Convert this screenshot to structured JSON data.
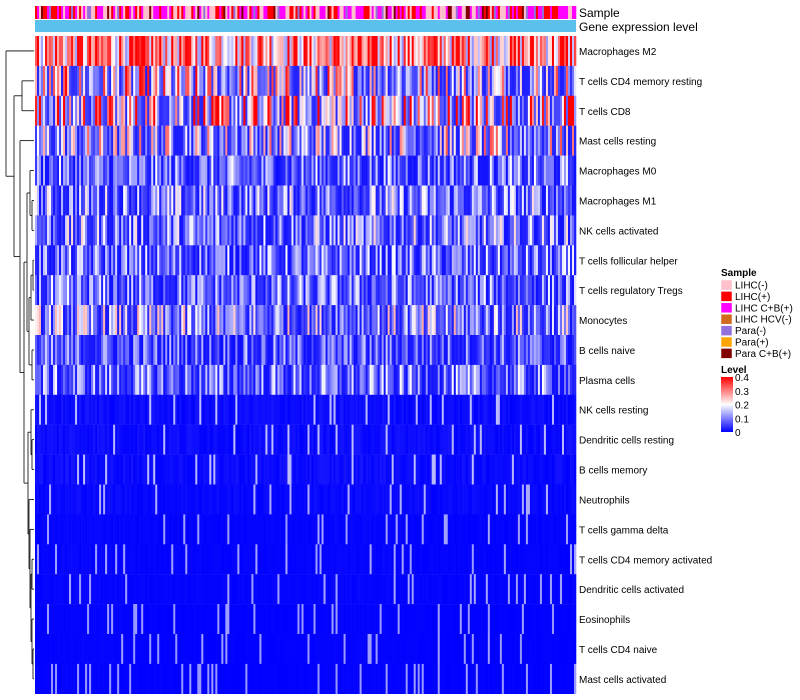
{
  "chart_data": {
    "type": "heatmap",
    "annotation_tracks": [
      "Sample",
      "Gene expression level"
    ],
    "rows": [
      {
        "name": "Macrophages M2",
        "mean": 0.27
      },
      {
        "name": "T cells CD4 memory resting",
        "mean": 0.12
      },
      {
        "name": "T cells CD8",
        "mean": 0.15
      },
      {
        "name": "Mast cells resting",
        "mean": 0.1
      },
      {
        "name": "Macrophages M0",
        "mean": 0.06
      },
      {
        "name": "Macrophages M1",
        "mean": 0.07
      },
      {
        "name": "NK cells activated",
        "mean": 0.07
      },
      {
        "name": "T cells follicular helper",
        "mean": 0.06
      },
      {
        "name": "T cells regulatory  Tregs",
        "mean": 0.06
      },
      {
        "name": "Monocytes",
        "mean": 0.08
      },
      {
        "name": "B cells naive",
        "mean": 0.05
      },
      {
        "name": "Plasma cells",
        "mean": 0.06
      },
      {
        "name": "NK cells resting",
        "mean": 0.03
      },
      {
        "name": "Dendritic cells resting",
        "mean": 0.03
      },
      {
        "name": "B cells memory",
        "mean": 0.03
      },
      {
        "name": "Neutrophils",
        "mean": 0.02
      },
      {
        "name": "T cells gamma delta",
        "mean": 0.01
      },
      {
        "name": "T cells CD4 memory activated",
        "mean": 0.01
      },
      {
        "name": "Dendritic cells activated",
        "mean": 0.01
      },
      {
        "name": "Eosinophils",
        "mean": 0.005
      },
      {
        "name": "T cells CD4 naive",
        "mean": 0.005
      },
      {
        "name": "Mast cells activated",
        "mean": 0.005
      }
    ],
    "legend_sample": {
      "title": "Sample",
      "items": [
        {
          "label": "LIHC(-)",
          "color": "#ffc0cb"
        },
        {
          "label": "LIHC(+)",
          "color": "#ff0000"
        },
        {
          "label": "LIHC C+B(+)",
          "color": "#ff00ff"
        },
        {
          "label": "LIHC HCV(-)",
          "color": "#d2691e"
        },
        {
          "label": "Para(-)",
          "color": "#9370db"
        },
        {
          "label": "Para(+)",
          "color": "#ffa500"
        },
        {
          "label": "Para C+B(+)",
          "color": "#800000"
        }
      ]
    },
    "legend_level": {
      "title": "Level",
      "ticks": [
        "0.4",
        "0.3",
        "0.2",
        "0.1",
        "0"
      ],
      "range": [
        0,
        0.4
      ],
      "colors": [
        "#0000ff",
        "#ffffff",
        "#ff0000"
      ]
    },
    "gene_expression_color": "#5bc0eb"
  }
}
